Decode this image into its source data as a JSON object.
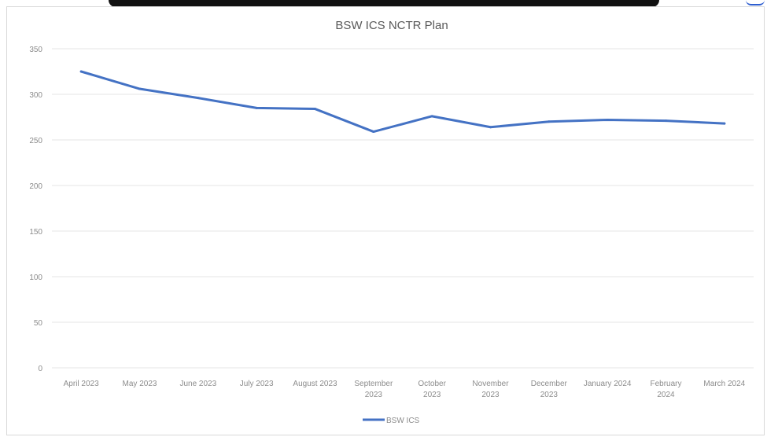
{
  "chart_data": {
    "type": "line",
    "title": "BSW ICS NCTR Plan",
    "xlabel": "",
    "ylabel": "",
    "categories": [
      [
        "April 2023"
      ],
      [
        "May 2023"
      ],
      [
        "June 2023"
      ],
      [
        "July 2023"
      ],
      [
        "August 2023"
      ],
      [
        "September",
        "2023"
      ],
      [
        "October",
        "2023"
      ],
      [
        "November",
        "2023"
      ],
      [
        "December",
        "2023"
      ],
      [
        "January 2024"
      ],
      [
        "February",
        "2024"
      ],
      [
        "March 2024"
      ]
    ],
    "series": [
      {
        "name": "BSW ICS",
        "color": "#4472c4",
        "values": [
          325,
          306,
          296,
          285,
          284,
          259,
          276,
          264,
          270,
          272,
          271,
          268
        ]
      }
    ],
    "ylim": [
      0,
      350
    ],
    "yticks": [
      0,
      50,
      100,
      150,
      200,
      250,
      300,
      350
    ],
    "grid": true,
    "legend": "bottom-center"
  }
}
